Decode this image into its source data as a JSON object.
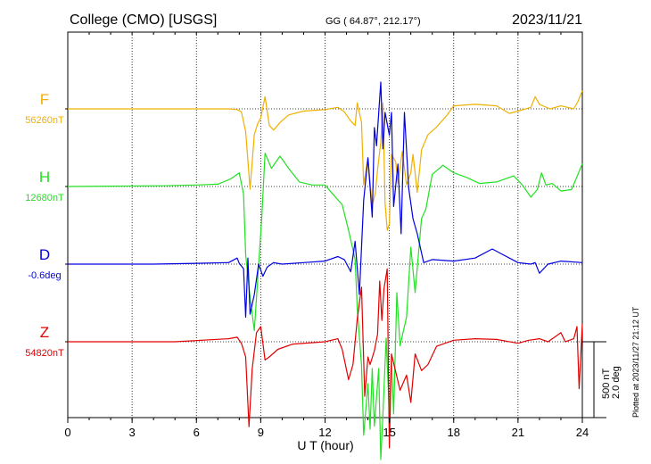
{
  "header": {
    "station": "College (CMO)  [USGS]",
    "coords": "GG ( 64.87°, 212.17°)",
    "date": "2023/11/21"
  },
  "side_note": "Plotted at 2023/11/27 21:12 UT",
  "scale_bar": {
    "line1": "500 nT",
    "line2": "2.0 deg"
  },
  "chart_data": {
    "type": "line",
    "xlabel": "U T (hour)",
    "xlim": [
      0,
      24
    ],
    "x_ticks": [
      "0",
      "3",
      "6",
      "9",
      "12",
      "15",
      "18",
      "21",
      "24"
    ],
    "grid": true,
    "series": [
      {
        "name": "F",
        "baseline_label": "56260nT",
        "color": "#f0b000",
        "points": [
          [
            0,
            0
          ],
          [
            5,
            0
          ],
          [
            7.5,
            0
          ],
          [
            7.9,
            5
          ],
          [
            8.1,
            20
          ],
          [
            8.3,
            150
          ],
          [
            8.5,
            530
          ],
          [
            8.7,
            170
          ],
          [
            8.85,
            100
          ],
          [
            9.0,
            60
          ],
          [
            9.2,
            -80
          ],
          [
            9.4,
            110
          ],
          [
            9.6,
            140
          ],
          [
            9.9,
            90
          ],
          [
            10.3,
            40
          ],
          [
            11,
            15
          ],
          [
            12,
            5
          ],
          [
            12.6,
            -10
          ],
          [
            12.9,
            20
          ],
          [
            13.2,
            80
          ],
          [
            13.4,
            110
          ],
          [
            13.5,
            -40
          ],
          [
            13.7,
            90
          ],
          [
            13.8,
            500
          ],
          [
            14.0,
            320
          ],
          [
            14.1,
            480
          ],
          [
            14.2,
            640
          ],
          [
            14.35,
            550
          ],
          [
            14.45,
            400
          ],
          [
            14.6,
            220
          ],
          [
            14.7,
            -40
          ],
          [
            14.8,
            620
          ],
          [
            14.9,
            800
          ],
          [
            15.0,
            760
          ],
          [
            15.1,
            300
          ],
          [
            15.3,
            350
          ],
          [
            15.4,
            490
          ],
          [
            15.6,
            280
          ],
          [
            15.8,
            500
          ],
          [
            16.0,
            420
          ],
          [
            16.1,
            300
          ],
          [
            16.3,
            550
          ],
          [
            16.5,
            270
          ],
          [
            16.8,
            170
          ],
          [
            17.2,
            120
          ],
          [
            17.7,
            40
          ],
          [
            18,
            -20
          ],
          [
            19,
            -30
          ],
          [
            20,
            -20
          ],
          [
            20.6,
            30
          ],
          [
            21.0,
            15
          ],
          [
            21.6,
            -10
          ],
          [
            21.8,
            -80
          ],
          [
            22.0,
            -30
          ],
          [
            22.5,
            0
          ],
          [
            23.0,
            -20
          ],
          [
            23.6,
            0
          ],
          [
            23.8,
            -50
          ],
          [
            24,
            -120
          ]
        ]
      },
      {
        "name": "H",
        "baseline_label": "12680nT",
        "color": "#22e022",
        "points": [
          [
            0,
            0
          ],
          [
            4.5,
            -5
          ],
          [
            6,
            -10
          ],
          [
            7,
            -15
          ],
          [
            7.6,
            -50
          ],
          [
            8.0,
            -90
          ],
          [
            8.2,
            50
          ],
          [
            8.3,
            450
          ],
          [
            8.5,
            730
          ],
          [
            8.7,
            950
          ],
          [
            8.9,
            520
          ],
          [
            9.05,
            200
          ],
          [
            9.2,
            -220
          ],
          [
            9.5,
            -120
          ],
          [
            9.9,
            -200
          ],
          [
            10.3,
            -120
          ],
          [
            10.8,
            -30
          ],
          [
            11.4,
            -10
          ],
          [
            12,
            -10
          ],
          [
            12.3,
            40
          ],
          [
            12.8,
            120
          ],
          [
            13.1,
            290
          ],
          [
            13.4,
            480
          ],
          [
            13.5,
            800
          ],
          [
            13.7,
            1180
          ],
          [
            13.8,
            1640
          ],
          [
            14.0,
            1300
          ],
          [
            14.1,
            1600
          ],
          [
            14.2,
            1200
          ],
          [
            14.3,
            1580
          ],
          [
            14.5,
            1200
          ],
          [
            14.6,
            1800
          ],
          [
            14.7,
            1500
          ],
          [
            14.85,
            1000
          ],
          [
            15.0,
            1500
          ],
          [
            15.1,
            1130
          ],
          [
            15.2,
            1500
          ],
          [
            15.35,
            700
          ],
          [
            15.5,
            1050
          ],
          [
            15.8,
            860
          ],
          [
            16.0,
            400
          ],
          [
            16.2,
            700
          ],
          [
            16.5,
            210
          ],
          [
            16.7,
            150
          ],
          [
            17.0,
            -80
          ],
          [
            17.5,
            -140
          ],
          [
            18,
            -90
          ],
          [
            18.6,
            -60
          ],
          [
            19.2,
            -20
          ],
          [
            20.0,
            -30
          ],
          [
            20.8,
            -70
          ],
          [
            21.2,
            -10
          ],
          [
            21.6,
            70
          ],
          [
            21.9,
            20
          ],
          [
            22.1,
            -90
          ],
          [
            22.3,
            -10
          ],
          [
            22.6,
            -20
          ],
          [
            23.0,
            30
          ],
          [
            23.5,
            20
          ],
          [
            24,
            -150
          ]
        ]
      },
      {
        "name": "D",
        "baseline_label": "-0.6deg",
        "color": "#0000e0",
        "points": [
          [
            0,
            0
          ],
          [
            4,
            0
          ],
          [
            6,
            -5
          ],
          [
            7.5,
            -10
          ],
          [
            7.9,
            -40
          ],
          [
            8.0,
            -5
          ],
          [
            8.2,
            30
          ],
          [
            8.3,
            350
          ],
          [
            8.4,
            -40
          ],
          [
            8.5,
            330
          ],
          [
            8.7,
            200
          ],
          [
            8.9,
            0
          ],
          [
            9.1,
            80
          ],
          [
            9.3,
            20
          ],
          [
            9.6,
            -10
          ],
          [
            10,
            0
          ],
          [
            11,
            -10
          ],
          [
            12,
            -20
          ],
          [
            12.6,
            -50
          ],
          [
            12.9,
            -30
          ],
          [
            13.2,
            50
          ],
          [
            13.4,
            -150
          ],
          [
            13.6,
            200
          ],
          [
            13.8,
            -420
          ],
          [
            14.0,
            -700
          ],
          [
            14.2,
            -310
          ],
          [
            14.3,
            -900
          ],
          [
            14.4,
            -780
          ],
          [
            14.6,
            -1200
          ],
          [
            14.7,
            -760
          ],
          [
            14.8,
            -1000
          ],
          [
            15.0,
            -850
          ],
          [
            15.1,
            -1000
          ],
          [
            15.2,
            -380
          ],
          [
            15.4,
            -660
          ],
          [
            15.55,
            -200
          ],
          [
            15.7,
            -1000
          ],
          [
            15.9,
            -500
          ],
          [
            16.1,
            -300
          ],
          [
            16.3,
            -200
          ],
          [
            16.6,
            -10
          ],
          [
            17,
            -30
          ],
          [
            18,
            -20
          ],
          [
            19,
            -40
          ],
          [
            19.8,
            -100
          ],
          [
            20.2,
            -70
          ],
          [
            21,
            -10
          ],
          [
            21.6,
            0
          ],
          [
            21.8,
            -10
          ],
          [
            22.0,
            60
          ],
          [
            22.4,
            0
          ],
          [
            23,
            -20
          ],
          [
            24,
            -10
          ]
        ]
      },
      {
        "name": "Z",
        "baseline_label": "54820nT",
        "color": "#e00000",
        "points": [
          [
            0,
            0
          ],
          [
            5,
            0
          ],
          [
            7.5,
            -20
          ],
          [
            7.9,
            -30
          ],
          [
            8.1,
            10
          ],
          [
            8.3,
            100
          ],
          [
            8.45,
            560
          ],
          [
            8.6,
            180
          ],
          [
            8.8,
            -60
          ],
          [
            9.0,
            -100
          ],
          [
            9.2,
            120
          ],
          [
            9.4,
            100
          ],
          [
            9.8,
            50
          ],
          [
            10.5,
            15
          ],
          [
            11.5,
            5
          ],
          [
            12,
            0
          ],
          [
            12.6,
            -20
          ],
          [
            12.8,
            50
          ],
          [
            13.1,
            250
          ],
          [
            13.3,
            150
          ],
          [
            13.5,
            -150
          ],
          [
            13.7,
            -360
          ],
          [
            13.85,
            360
          ],
          [
            14.0,
            100
          ],
          [
            14.1,
            150
          ],
          [
            14.3,
            60
          ],
          [
            14.45,
            -50
          ],
          [
            14.55,
            -400
          ],
          [
            14.65,
            -140
          ],
          [
            14.75,
            -350
          ],
          [
            14.9,
            -480
          ],
          [
            15.0,
            700
          ],
          [
            15.1,
            80
          ],
          [
            15.3,
            200
          ],
          [
            15.5,
            320
          ],
          [
            15.8,
            220
          ],
          [
            16.0,
            400
          ],
          [
            16.2,
            80
          ],
          [
            16.5,
            190
          ],
          [
            16.8,
            150
          ],
          [
            17.2,
            30
          ],
          [
            18,
            -10
          ],
          [
            19,
            -20
          ],
          [
            20,
            -15
          ],
          [
            21,
            10
          ],
          [
            21.5,
            -10
          ],
          [
            22,
            -20
          ],
          [
            22.4,
            0
          ],
          [
            22.8,
            -40
          ],
          [
            23.0,
            -60
          ],
          [
            23.2,
            0
          ],
          [
            23.6,
            -20
          ],
          [
            23.75,
            -100
          ],
          [
            23.85,
            310
          ],
          [
            24,
            -120
          ]
        ]
      }
    ]
  }
}
